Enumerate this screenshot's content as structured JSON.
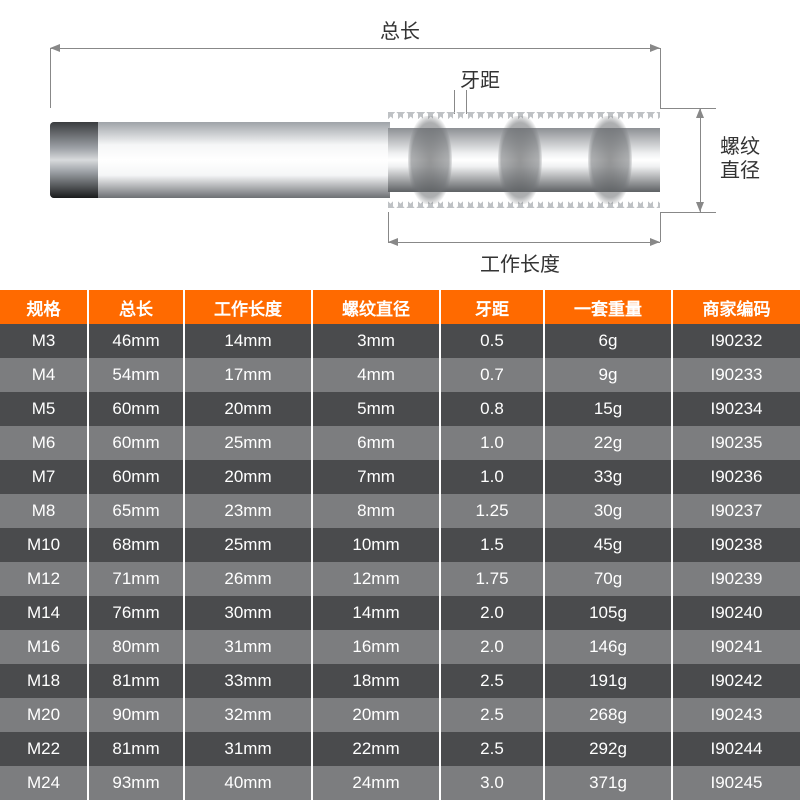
{
  "diagram": {
    "labels": {
      "total_length": "总长",
      "pitch": "牙距",
      "thread_diameter": "螺纹\n直径",
      "working_length": "工作长度"
    },
    "colors": {
      "line": "#888888",
      "text": "#333333",
      "header_bg": "#ff6a00",
      "row_dark": "#4a4b4d",
      "row_light": "#7c7d7f",
      "border": "#ffffff"
    },
    "font": {
      "label_size": 20,
      "table_size": 17
    }
  },
  "table": {
    "type": "table",
    "columns": [
      "规格",
      "总长",
      "工作长度",
      "螺纹直径",
      "牙距",
      "一套重量",
      "商家编码"
    ],
    "col_widths_pct": [
      11,
      12,
      16,
      16,
      13,
      16,
      16
    ],
    "rows": [
      [
        "M3",
        "46mm",
        "14mm",
        "3mm",
        "0.5",
        "6g",
        "I90232"
      ],
      [
        "M4",
        "54mm",
        "17mm",
        "4mm",
        "0.7",
        "9g",
        "I90233"
      ],
      [
        "M5",
        "60mm",
        "20mm",
        "5mm",
        "0.8",
        "15g",
        "I90234"
      ],
      [
        "M6",
        "60mm",
        "25mm",
        "6mm",
        "1.0",
        "22g",
        "I90235"
      ],
      [
        "M7",
        "60mm",
        "20mm",
        "7mm",
        "1.0",
        "33g",
        "I90236"
      ],
      [
        "M8",
        "65mm",
        "23mm",
        "8mm",
        "1.25",
        "30g",
        "I90237"
      ],
      [
        "M10",
        "68mm",
        "25mm",
        "10mm",
        "1.5",
        "45g",
        "I90238"
      ],
      [
        "M12",
        "71mm",
        "26mm",
        "12mm",
        "1.75",
        "70g",
        "I90239"
      ],
      [
        "M14",
        "76mm",
        "30mm",
        "14mm",
        "2.0",
        "105g",
        "I90240"
      ],
      [
        "M16",
        "80mm",
        "31mm",
        "16mm",
        "2.0",
        "146g",
        "I90241"
      ],
      [
        "M18",
        "81mm",
        "33mm",
        "18mm",
        "2.5",
        "191g",
        "I90242"
      ],
      [
        "M20",
        "90mm",
        "32mm",
        "20mm",
        "2.5",
        "268g",
        "I90243"
      ],
      [
        "M22",
        "81mm",
        "31mm",
        "22mm",
        "2.5",
        "292g",
        "I90244"
      ],
      [
        "M24",
        "93mm",
        "40mm",
        "24mm",
        "3.0",
        "371g",
        "I90245"
      ]
    ]
  }
}
